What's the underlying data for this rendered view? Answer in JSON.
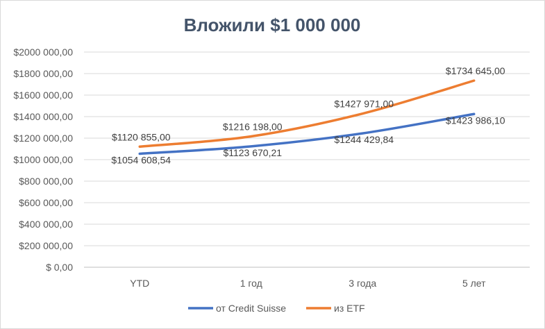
{
  "chart_data": {
    "type": "line",
    "title": "Вложили $1 000 000",
    "categories": [
      "YTD",
      "1 год",
      "3 года",
      "5 лет"
    ],
    "ylim": [
      0,
      2000000
    ],
    "yticks": [
      {
        "value": 0,
        "label": "$ 0,00"
      },
      {
        "value": 200000,
        "label": "$200 000,00"
      },
      {
        "value": 400000,
        "label": "$400 000,00"
      },
      {
        "value": 600000,
        "label": "$600 000,00"
      },
      {
        "value": 800000,
        "label": "$800 000,00"
      },
      {
        "value": 1000000,
        "label": "$1000 000,00"
      },
      {
        "value": 1200000,
        "label": "$1200 000,00"
      },
      {
        "value": 1400000,
        "label": "$1400 000,00"
      },
      {
        "value": 1600000,
        "label": "$1600 000,00"
      },
      {
        "value": 1800000,
        "label": "$1800 000,00"
      },
      {
        "value": 2000000,
        "label": "$2000 000,00"
      }
    ],
    "grid": true,
    "legend_position": "bottom",
    "series": [
      {
        "name": "от Credit Suisse",
        "color": "#4472c4",
        "values": [
          1054608.54,
          1123670.21,
          1244429.84,
          1423986.1
        ],
        "labels": [
          "$1054 608,54",
          "$1123 670,21",
          "$1244 429,84",
          "$1423 986,10"
        ]
      },
      {
        "name": "из ETF",
        "color": "#ed7d31",
        "values": [
          1120855.0,
          1216198.0,
          1427971.0,
          1734645.0
        ],
        "labels": [
          "$1120 855,00",
          "$1216 198,00",
          "$1427 971,00",
          "$1734 645,00"
        ]
      }
    ]
  }
}
